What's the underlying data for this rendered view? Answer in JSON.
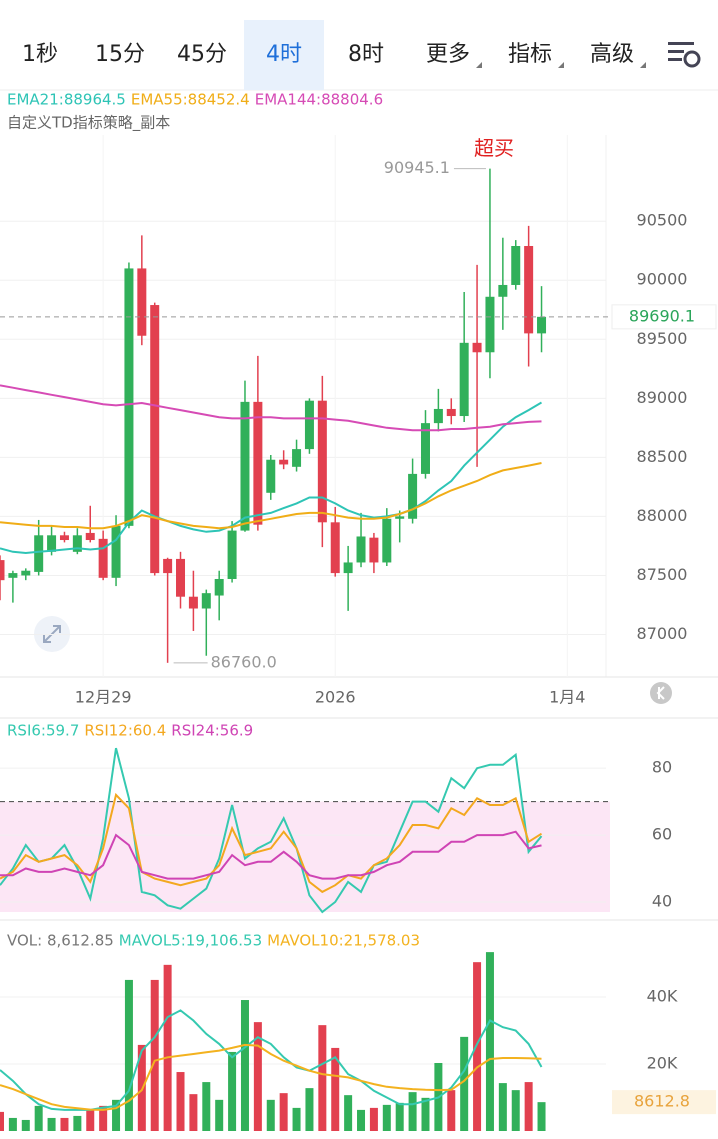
{
  "tabs": [
    "1秒",
    "15分",
    "45分",
    "4时",
    "8时",
    "更多",
    "指标",
    "高级"
  ],
  "active_tab": 3,
  "study_name": "自定义TD指标策略_副本",
  "chart_data": [
    {
      "type": "candlestick",
      "categories": [
        null,
        null,
        null,
        null,
        null,
        null,
        null,
        null,
        null,
        null,
        null,
        null,
        null,
        null,
        null,
        null,
        null,
        null,
        null,
        null,
        null,
        null,
        null,
        null,
        null,
        null,
        null,
        null,
        null,
        null,
        null,
        null,
        null,
        null,
        null,
        null,
        null,
        null,
        null,
        null,
        null,
        null,
        null
      ],
      "open": [
        87630,
        87480,
        87500,
        87530,
        87700,
        87840,
        87700,
        87860,
        87810,
        87480,
        87920,
        90100,
        89790,
        87640,
        87640,
        87320,
        87220,
        87330,
        87470,
        87880,
        88970,
        88200,
        88480,
        88420,
        88570,
        88980,
        87950,
        87520,
        87610,
        87820,
        87610,
        87980,
        87980,
        88360,
        88790,
        88910,
        88850,
        89470,
        89390,
        89860,
        89960,
        90290,
        89550
      ],
      "high": [
        87670,
        87540,
        87560,
        87970,
        87920,
        87870,
        87900,
        88090,
        87880,
        88010,
        90150,
        90380,
        89810,
        87650,
        87700,
        87540,
        87380,
        87540,
        87960,
        89150,
        89360,
        88520,
        88560,
        88650,
        89000,
        89190,
        88080,
        87750,
        88030,
        87860,
        88070,
        88050,
        88490,
        88900,
        89080,
        89000,
        89900,
        90130,
        90945.1,
        90360,
        90340,
        90460,
        89950
      ],
      "low": [
        87290,
        87270,
        87460,
        87500,
        87670,
        87780,
        87680,
        87780,
        87460,
        87410,
        87900,
        89450,
        87500,
        86760,
        87220,
        87030,
        86820,
        87120,
        87440,
        87870,
        87880,
        88140,
        88400,
        88380,
        88530,
        87740,
        87490,
        87200,
        87570,
        87520,
        87580,
        87780,
        87940,
        88320,
        88720,
        88780,
        88800,
        88420,
        89170,
        89580,
        89920,
        89270,
        89390
      ],
      "close": [
        87460,
        87520,
        87540,
        87840,
        87840,
        87800,
        87840,
        87800,
        87480,
        87920,
        90100,
        89530,
        87520,
        87520,
        87320,
        87220,
        87350,
        87470,
        87880,
        88970,
        87930,
        88480,
        88440,
        88570,
        88980,
        87950,
        87520,
        87610,
        87830,
        87610,
        87980,
        88000,
        88360,
        88790,
        88910,
        88850,
        89470,
        89390,
        89860,
        89960,
        90290,
        89550,
        89690.1
      ],
      "up_color": "#31b05a",
      "down_color": "#e2404f",
      "series": [
        {
          "name": "EMA21:88964.5",
          "color": "#2ec4b6",
          "values": [
            87730,
            87700,
            87690,
            87700,
            87710,
            87720,
            87730,
            87720,
            87730,
            87800,
            87950,
            88050,
            88000,
            87960,
            87920,
            87890,
            87870,
            87880,
            87920,
            87990,
            88010,
            88030,
            88070,
            88110,
            88160,
            88160,
            88110,
            88050,
            88010,
            87990,
            88000,
            88020,
            88060,
            88130,
            88220,
            88300,
            88430,
            88540,
            88650,
            88760,
            88840,
            88900,
            88964.5
          ]
        },
        {
          "name": "EMA55:88452.4",
          "color": "#f0ad17",
          "values": [
            87950,
            87940,
            87930,
            87920,
            87920,
            87910,
            87910,
            87900,
            87900,
            87920,
            87960,
            88010,
            87990,
            87960,
            87940,
            87920,
            87910,
            87900,
            87910,
            87940,
            87960,
            87980,
            88000,
            88020,
            88030,
            88030,
            88010,
            87990,
            87980,
            87980,
            87990,
            88020,
            88060,
            88110,
            88170,
            88220,
            88260,
            88300,
            88350,
            88390,
            88410,
            88430,
            88452.4
          ]
        },
        {
          "name": "EMA144:88804.6",
          "color": "#d64bb5",
          "values": [
            89110,
            89090,
            89070,
            89050,
            89030,
            89010,
            88990,
            88970,
            88950,
            88940,
            88950,
            88960,
            88940,
            88920,
            88900,
            88880,
            88860,
            88840,
            88830,
            88830,
            88840,
            88840,
            88830,
            88830,
            88830,
            88830,
            88820,
            88810,
            88790,
            88770,
            88750,
            88740,
            88730,
            88730,
            88730,
            88740,
            88740,
            88750,
            88760,
            88780,
            88790,
            88800,
            88804.6
          ]
        }
      ],
      "last_price": 89690.1,
      "low_label": "86760.0",
      "annotation": "超买",
      "xlim": [
        0,
        47
      ],
      "xticks": [
        {
          "value": 8,
          "label": "12月29"
        },
        {
          "value": 26,
          "label": "2026"
        },
        {
          "value": 44,
          "label": "1月4"
        }
      ],
      "ylim": [
        86640,
        91230
      ],
      "yticks": [
        87000,
        87500,
        88000,
        88500,
        89000,
        89500,
        90000,
        90500
      ],
      "grid": true
    },
    {
      "type": "line",
      "series": [
        {
          "name": "RSI6:59.7",
          "color": "#35c9b0",
          "values": [
            45,
            50,
            57,
            52,
            53,
            57,
            50,
            41,
            59,
            86,
            71,
            43,
            42,
            39,
            38,
            41,
            44,
            53,
            69,
            53,
            56,
            58,
            65,
            56,
            42,
            37,
            40,
            46,
            43,
            51,
            52,
            61,
            70,
            70,
            67,
            77,
            74,
            80,
            81,
            81,
            84,
            55,
            59.7
          ]
        },
        {
          "name": "RSI12:60.4",
          "color": "#f3a81f",
          "values": [
            47,
            49,
            54,
            52,
            53,
            54,
            51,
            46,
            56,
            72,
            68,
            49,
            47,
            46,
            45,
            46,
            47,
            51,
            62,
            54,
            55,
            56,
            61,
            56,
            46,
            43,
            45,
            48,
            47,
            51,
            53,
            57,
            63,
            63,
            62,
            68,
            66,
            71,
            69,
            69,
            71,
            58,
            60.4
          ]
        },
        {
          "name": "RSI24:56.9",
          "color": "#cf44b4",
          "values": [
            48,
            48,
            50,
            49,
            49,
            50,
            49,
            48,
            51,
            60,
            57,
            49,
            48,
            47,
            47,
            47,
            48,
            49,
            54,
            51,
            52,
            52,
            55,
            52,
            48,
            47,
            47,
            48,
            48,
            49,
            51,
            52,
            55,
            55,
            55,
            58,
            58,
            60,
            60,
            60,
            61,
            56,
            56.9
          ]
        }
      ],
      "overbought": 70,
      "oversold": 30,
      "band_color": "#fce6f5",
      "xlim": [
        0,
        47
      ],
      "ylim": [
        37,
        95
      ],
      "yticks": [
        40,
        60,
        80
      ],
      "grid": true
    },
    {
      "type": "volume",
      "name": "VOL: 8,612.85",
      "values": [
        5700,
        3900,
        3300,
        7500,
        3900,
        3900,
        4500,
        6300,
        7500,
        9300,
        45100,
        25700,
        45100,
        49600,
        17600,
        11000,
        14600,
        9300,
        23600,
        39100,
        32500,
        9300,
        11300,
        6900,
        12800,
        31600,
        24800,
        10700,
        6300,
        6900,
        7800,
        8400,
        11600,
        9900,
        20300,
        12200,
        28100,
        50400,
        53400,
        14300,
        12200,
        14600,
        8612.85
      ],
      "last_label": "8612.8",
      "series": [
        {
          "name": "MAVOL5:19,106.53",
          "color": "#35c9b0",
          "values": [
            18200,
            15000,
            11000,
            8000,
            6600,
            6300,
            6300,
            6300,
            7000,
            7500,
            12000,
            24000,
            28000,
            34000,
            36000,
            33000,
            29000,
            26000,
            22000,
            25000,
            28000,
            26000,
            22000,
            19000,
            18000,
            20000,
            22000,
            17000,
            15000,
            12000,
            10000,
            8000,
            8000,
            9000,
            10000,
            13000,
            18000,
            26000,
            33000,
            31000,
            30000,
            26000,
            19106.53
          ]
        },
        {
          "name": "MAVOL10:21,578.03",
          "color": "#f3b21f",
          "values": [
            13700,
            12500,
            11000,
            9500,
            8000,
            7200,
            6800,
            6400,
            6300,
            6800,
            9000,
            12200,
            21000,
            22000,
            22500,
            23000,
            23500,
            24000,
            24800,
            25700,
            25500,
            23000,
            21000,
            19500,
            18000,
            17000,
            16500,
            16000,
            15000,
            14000,
            13200,
            12800,
            12500,
            12300,
            12200,
            12300,
            15000,
            19000,
            21500,
            21800,
            21800,
            21700,
            21578.03
          ]
        }
      ],
      "xlim": [
        0,
        47
      ],
      "ylim": [
        0,
        60600
      ],
      "yticks": [
        {
          "value": 20000,
          "label": "20K"
        },
        {
          "value": 40000,
          "label": "40K"
        }
      ],
      "grid": true
    }
  ]
}
